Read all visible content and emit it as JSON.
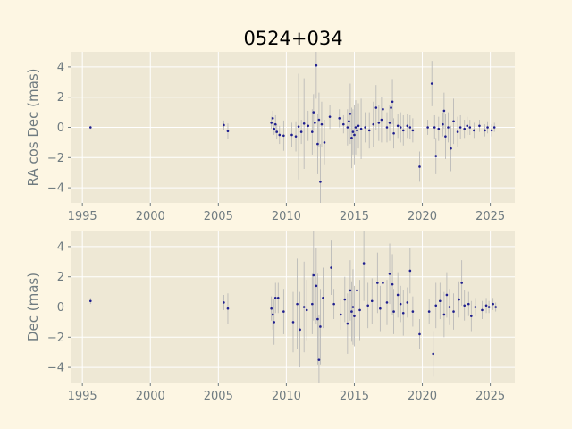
{
  "title": "0524+034",
  "chart_data": [
    {
      "type": "scatter",
      "title": "0524+034",
      "xlabel": "",
      "ylabel": "RA cos Dec (mas)",
      "xlim": [
        1994.2,
        2026.8
      ],
      "ylim": [
        -5,
        5
      ],
      "xticks": [
        1995,
        2000,
        2005,
        2010,
        2015,
        2020,
        2025
      ],
      "yticks": [
        -4,
        -2,
        0,
        2,
        4
      ],
      "grid": true,
      "marker_color": "#1f1f8f",
      "errorbar_color": "#b5b5b5",
      "background_color": "#eee8d5",
      "points": [
        {
          "x": 1995.6,
          "y": 0.0,
          "e": 0.1
        },
        {
          "x": 2005.4,
          "y": 0.15,
          "e": 0.3
        },
        {
          "x": 2005.7,
          "y": -0.25,
          "e": 0.5
        },
        {
          "x": 2008.9,
          "y": 0.3,
          "e": 0.4
        },
        {
          "x": 2009.0,
          "y": 0.6,
          "e": 0.5
        },
        {
          "x": 2009.1,
          "y": -0.1,
          "e": 0.4
        },
        {
          "x": 2009.2,
          "y": 0.2,
          "e": 0.6
        },
        {
          "x": 2009.3,
          "y": -0.3,
          "e": 0.5
        },
        {
          "x": 2009.5,
          "y": -0.5,
          "e": 0.6
        },
        {
          "x": 2009.8,
          "y": -0.55,
          "e": 1.0
        },
        {
          "x": 2010.4,
          "y": -0.5,
          "e": 0.8
        },
        {
          "x": 2010.7,
          "y": -0.6,
          "e": 1.0
        },
        {
          "x": 2010.9,
          "y": 0.05,
          "e": 3.5
        },
        {
          "x": 2011.1,
          "y": -0.3,
          "e": 0.8
        },
        {
          "x": 2011.3,
          "y": 0.25,
          "e": 3.0
        },
        {
          "x": 2011.6,
          "y": 0.1,
          "e": 1.0
        },
        {
          "x": 2011.9,
          "y": -0.3,
          "e": 1.5
        },
        {
          "x": 2012.0,
          "y": 1.0,
          "e": 1.2
        },
        {
          "x": 2012.1,
          "y": 0.3,
          "e": 2.0
        },
        {
          "x": 2012.2,
          "y": 4.1,
          "e": 2.2
        },
        {
          "x": 2012.3,
          "y": -1.1,
          "e": 2.0
        },
        {
          "x": 2012.4,
          "y": 0.5,
          "e": 1.8
        },
        {
          "x": 2012.5,
          "y": -3.6,
          "e": 2.5
        },
        {
          "x": 2012.6,
          "y": 0.2,
          "e": 1.5
        },
        {
          "x": 2012.8,
          "y": -1.0,
          "e": 1.5
        },
        {
          "x": 2013.2,
          "y": 0.7,
          "e": 0.8
        },
        {
          "x": 2013.9,
          "y": 0.6,
          "e": 0.6
        },
        {
          "x": 2014.2,
          "y": 0.2,
          "e": 0.6
        },
        {
          "x": 2014.5,
          "y": 0.0,
          "e": 1.2
        },
        {
          "x": 2014.6,
          "y": 0.4,
          "e": 1.5
        },
        {
          "x": 2014.7,
          "y": 0.9,
          "e": 2.0
        },
        {
          "x": 2014.8,
          "y": -0.7,
          "e": 2.0
        },
        {
          "x": 2014.9,
          "y": -0.3,
          "e": 1.5
        },
        {
          "x": 2015.0,
          "y": -0.5,
          "e": 2.0
        },
        {
          "x": 2015.1,
          "y": 0.0,
          "e": 1.8
        },
        {
          "x": 2015.2,
          "y": -0.2,
          "e": 2.0
        },
        {
          "x": 2015.3,
          "y": 0.1,
          "e": 1.5
        },
        {
          "x": 2015.5,
          "y": -0.1,
          "e": 2.0
        },
        {
          "x": 2015.8,
          "y": 0.0,
          "e": 1.0
        },
        {
          "x": 2016.1,
          "y": -0.2,
          "e": 1.2
        },
        {
          "x": 2016.4,
          "y": 0.2,
          "e": 1.5
        },
        {
          "x": 2016.6,
          "y": 1.3,
          "e": 1.5
        },
        {
          "x": 2016.8,
          "y": 0.3,
          "e": 1.2
        },
        {
          "x": 2017.0,
          "y": 0.5,
          "e": 1.5
        },
        {
          "x": 2017.1,
          "y": 1.2,
          "e": 2.0
        },
        {
          "x": 2017.4,
          "y": 0.0,
          "e": 1.0
        },
        {
          "x": 2017.6,
          "y": 0.3,
          "e": 1.2
        },
        {
          "x": 2017.7,
          "y": 1.3,
          "e": 1.5
        },
        {
          "x": 2017.8,
          "y": 1.7,
          "e": 1.5
        },
        {
          "x": 2017.9,
          "y": -0.4,
          "e": 1.0
        },
        {
          "x": 2018.2,
          "y": 0.1,
          "e": 0.8
        },
        {
          "x": 2018.4,
          "y": 0.0,
          "e": 1.0
        },
        {
          "x": 2018.6,
          "y": -0.2,
          "e": 1.0
        },
        {
          "x": 2018.9,
          "y": 0.1,
          "e": 0.8
        },
        {
          "x": 2019.1,
          "y": 0.0,
          "e": 0.8
        },
        {
          "x": 2019.3,
          "y": -0.2,
          "e": 0.8
        },
        {
          "x": 2019.8,
          "y": -2.6,
          "e": 1.0
        },
        {
          "x": 2020.4,
          "y": 0.0,
          "e": 0.5
        },
        {
          "x": 2020.7,
          "y": 2.9,
          "e": 1.5
        },
        {
          "x": 2020.9,
          "y": 0.0,
          "e": 0.8
        },
        {
          "x": 2021.0,
          "y": -1.9,
          "e": 1.2
        },
        {
          "x": 2021.2,
          "y": -0.1,
          "e": 0.8
        },
        {
          "x": 2021.5,
          "y": 0.2,
          "e": 0.8
        },
        {
          "x": 2021.6,
          "y": 1.1,
          "e": 1.2
        },
        {
          "x": 2021.7,
          "y": -0.6,
          "e": 1.5
        },
        {
          "x": 2021.9,
          "y": 0.0,
          "e": 1.0
        },
        {
          "x": 2022.1,
          "y": -1.4,
          "e": 1.5
        },
        {
          "x": 2022.3,
          "y": 0.4,
          "e": 1.5
        },
        {
          "x": 2022.6,
          "y": -0.3,
          "e": 1.0
        },
        {
          "x": 2022.8,
          "y": 0.0,
          "e": 0.8
        },
        {
          "x": 2023.1,
          "y": -0.1,
          "e": 0.6
        },
        {
          "x": 2023.3,
          "y": 0.1,
          "e": 0.6
        },
        {
          "x": 2023.5,
          "y": 0.0,
          "e": 0.5
        },
        {
          "x": 2023.8,
          "y": -0.2,
          "e": 0.5
        },
        {
          "x": 2024.2,
          "y": 0.1,
          "e": 0.4
        },
        {
          "x": 2024.6,
          "y": -0.2,
          "e": 0.4
        },
        {
          "x": 2024.8,
          "y": 0.0,
          "e": 0.4
        },
        {
          "x": 2025.1,
          "y": -0.2,
          "e": 0.4
        },
        {
          "x": 2025.3,
          "y": 0.0,
          "e": 0.3
        }
      ]
    },
    {
      "type": "scatter",
      "xlabel": "",
      "ylabel": "Dec (mas)",
      "xlim": [
        1994.2,
        2026.8
      ],
      "ylim": [
        -5,
        5
      ],
      "xticks": [
        1995,
        2000,
        2005,
        2010,
        2015,
        2020,
        2025
      ],
      "yticks": [
        -4,
        -2,
        0,
        2,
        4
      ],
      "grid": true,
      "marker_color": "#1f1f8f",
      "errorbar_color": "#b5b5b5",
      "background_color": "#eee8d5",
      "points": [
        {
          "x": 1995.6,
          "y": 0.4,
          "e": 0.2
        },
        {
          "x": 2005.4,
          "y": 0.3,
          "e": 0.5
        },
        {
          "x": 2005.7,
          "y": -0.1,
          "e": 1.0
        },
        {
          "x": 2008.9,
          "y": -0.1,
          "e": 0.8
        },
        {
          "x": 2009.0,
          "y": -0.5,
          "e": 1.0
        },
        {
          "x": 2009.1,
          "y": -1.0,
          "e": 1.5
        },
        {
          "x": 2009.2,
          "y": 0.6,
          "e": 1.0
        },
        {
          "x": 2009.4,
          "y": 0.6,
          "e": 1.0
        },
        {
          "x": 2009.8,
          "y": -0.3,
          "e": 1.5
        },
        {
          "x": 2010.5,
          "y": -1.0,
          "e": 2.0
        },
        {
          "x": 2010.8,
          "y": 0.2,
          "e": 3.0
        },
        {
          "x": 2011.0,
          "y": -1.5,
          "e": 2.5
        },
        {
          "x": 2011.3,
          "y": 0.0,
          "e": 3.0
        },
        {
          "x": 2011.5,
          "y": -0.2,
          "e": 2.0
        },
        {
          "x": 2011.9,
          "y": 0.2,
          "e": 2.0
        },
        {
          "x": 2012.0,
          "y": 2.1,
          "e": 3.0
        },
        {
          "x": 2012.2,
          "y": 1.4,
          "e": 2.5
        },
        {
          "x": 2012.3,
          "y": -0.8,
          "e": 3.0
        },
        {
          "x": 2012.4,
          "y": -3.5,
          "e": 3.0
        },
        {
          "x": 2012.5,
          "y": -1.3,
          "e": 2.5
        },
        {
          "x": 2012.7,
          "y": 0.6,
          "e": 2.0
        },
        {
          "x": 2013.3,
          "y": 2.6,
          "e": 1.8
        },
        {
          "x": 2013.5,
          "y": 0.2,
          "e": 1.0
        },
        {
          "x": 2014.0,
          "y": -0.5,
          "e": 1.0
        },
        {
          "x": 2014.3,
          "y": 0.5,
          "e": 1.5
        },
        {
          "x": 2014.5,
          "y": -1.1,
          "e": 2.0
        },
        {
          "x": 2014.7,
          "y": 1.1,
          "e": 2.0
        },
        {
          "x": 2014.8,
          "y": -0.3,
          "e": 2.0
        },
        {
          "x": 2014.9,
          "y": 0.0,
          "e": 2.5
        },
        {
          "x": 2015.0,
          "y": -0.6,
          "e": 2.0
        },
        {
          "x": 2015.2,
          "y": 1.1,
          "e": 2.5
        },
        {
          "x": 2015.4,
          "y": -0.2,
          "e": 2.0
        },
        {
          "x": 2015.7,
          "y": 2.9,
          "e": 2.5
        },
        {
          "x": 2016.0,
          "y": 0.1,
          "e": 1.5
        },
        {
          "x": 2016.3,
          "y": 0.4,
          "e": 1.5
        },
        {
          "x": 2016.7,
          "y": 1.6,
          "e": 2.0
        },
        {
          "x": 2016.9,
          "y": -0.1,
          "e": 1.5
        },
        {
          "x": 2017.1,
          "y": 1.6,
          "e": 2.0
        },
        {
          "x": 2017.4,
          "y": 0.3,
          "e": 1.5
        },
        {
          "x": 2017.6,
          "y": 2.2,
          "e": 2.0
        },
        {
          "x": 2017.8,
          "y": 1.5,
          "e": 2.0
        },
        {
          "x": 2017.9,
          "y": -0.3,
          "e": 1.5
        },
        {
          "x": 2018.2,
          "y": 0.8,
          "e": 1.5
        },
        {
          "x": 2018.4,
          "y": 0.2,
          "e": 1.2
        },
        {
          "x": 2018.6,
          "y": -0.4,
          "e": 1.5
        },
        {
          "x": 2018.9,
          "y": 0.3,
          "e": 1.0
        },
        {
          "x": 2019.1,
          "y": 2.4,
          "e": 1.5
        },
        {
          "x": 2019.3,
          "y": -0.3,
          "e": 1.0
        },
        {
          "x": 2019.8,
          "y": -1.8,
          "e": 1.0
        },
        {
          "x": 2020.5,
          "y": -0.3,
          "e": 0.8
        },
        {
          "x": 2020.8,
          "y": -3.1,
          "e": 1.5
        },
        {
          "x": 2021.0,
          "y": 0.1,
          "e": 1.5
        },
        {
          "x": 2021.3,
          "y": 0.4,
          "e": 1.2
        },
        {
          "x": 2021.6,
          "y": -0.5,
          "e": 1.5
        },
        {
          "x": 2021.8,
          "y": 0.8,
          "e": 1.5
        },
        {
          "x": 2022.0,
          "y": 0.0,
          "e": 1.2
        },
        {
          "x": 2022.3,
          "y": -0.3,
          "e": 1.2
        },
        {
          "x": 2022.7,
          "y": 0.5,
          "e": 1.2
        },
        {
          "x": 2022.9,
          "y": 1.6,
          "e": 1.5
        },
        {
          "x": 2023.1,
          "y": 0.1,
          "e": 1.0
        },
        {
          "x": 2023.4,
          "y": 0.2,
          "e": 0.8
        },
        {
          "x": 2023.6,
          "y": -0.6,
          "e": 1.0
        },
        {
          "x": 2023.9,
          "y": 0.0,
          "e": 0.6
        },
        {
          "x": 2024.4,
          "y": -0.2,
          "e": 0.6
        },
        {
          "x": 2024.7,
          "y": 0.1,
          "e": 0.5
        },
        {
          "x": 2024.9,
          "y": 0.0,
          "e": 0.4
        },
        {
          "x": 2025.2,
          "y": 0.2,
          "e": 0.4
        },
        {
          "x": 2025.4,
          "y": 0.0,
          "e": 0.3
        }
      ]
    }
  ]
}
